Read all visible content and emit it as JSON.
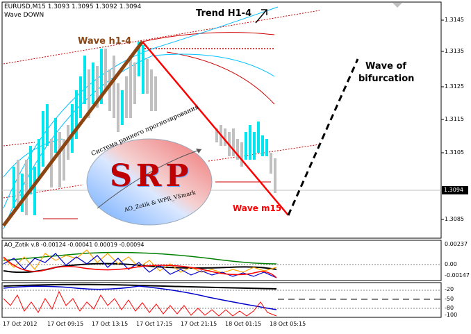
{
  "header": {
    "symbol_line": "EURUSD,M15  1.3093 1.3095 1.3092 1.3094",
    "indicator_name": "Wave DOWN"
  },
  "annotations": {
    "trend": "Trend H1-4",
    "wave_h1": "Wave h1-4",
    "wave_bif_line1": "Wave of",
    "wave_bif_line2": "bifurcation",
    "wave_m15": "Wave m15"
  },
  "logo": {
    "arc_text": "Система раннего прогнозирования",
    "letters": "SRP",
    "sub_text": "AO_Zotik & WPR_VSmark"
  },
  "price_axis": {
    "labels": [
      "1.3145",
      "1.3135",
      "1.3125",
      "1.3115",
      "1.3105",
      "1.3094",
      "1.3085"
    ],
    "current": "1.3094"
  },
  "indicator1": {
    "title": "AO_Zotik v.8 -0.00124 -0.00041 0.00019 -0.00094",
    "levels": [
      "0.00237",
      "0.00",
      "-0.00147"
    ]
  },
  "indicator2": {
    "levels": [
      "-20",
      "-50",
      "-80",
      "-100"
    ]
  },
  "time_axis": {
    "labels": [
      "17 Oct 2012",
      "17 Oct 09:15",
      "17 Oct 13:15",
      "17 Oct 17:15",
      "17 Oct 21:15",
      "18 Oct 01:15",
      "18 Oct 05:15"
    ]
  },
  "colors": {
    "wave_h1": "#8b4513",
    "wave_m15": "#ff0000",
    "bull_bar": "#00e5ee",
    "bear_bar": "#c0c0c0",
    "bif_line": "#000000"
  }
}
